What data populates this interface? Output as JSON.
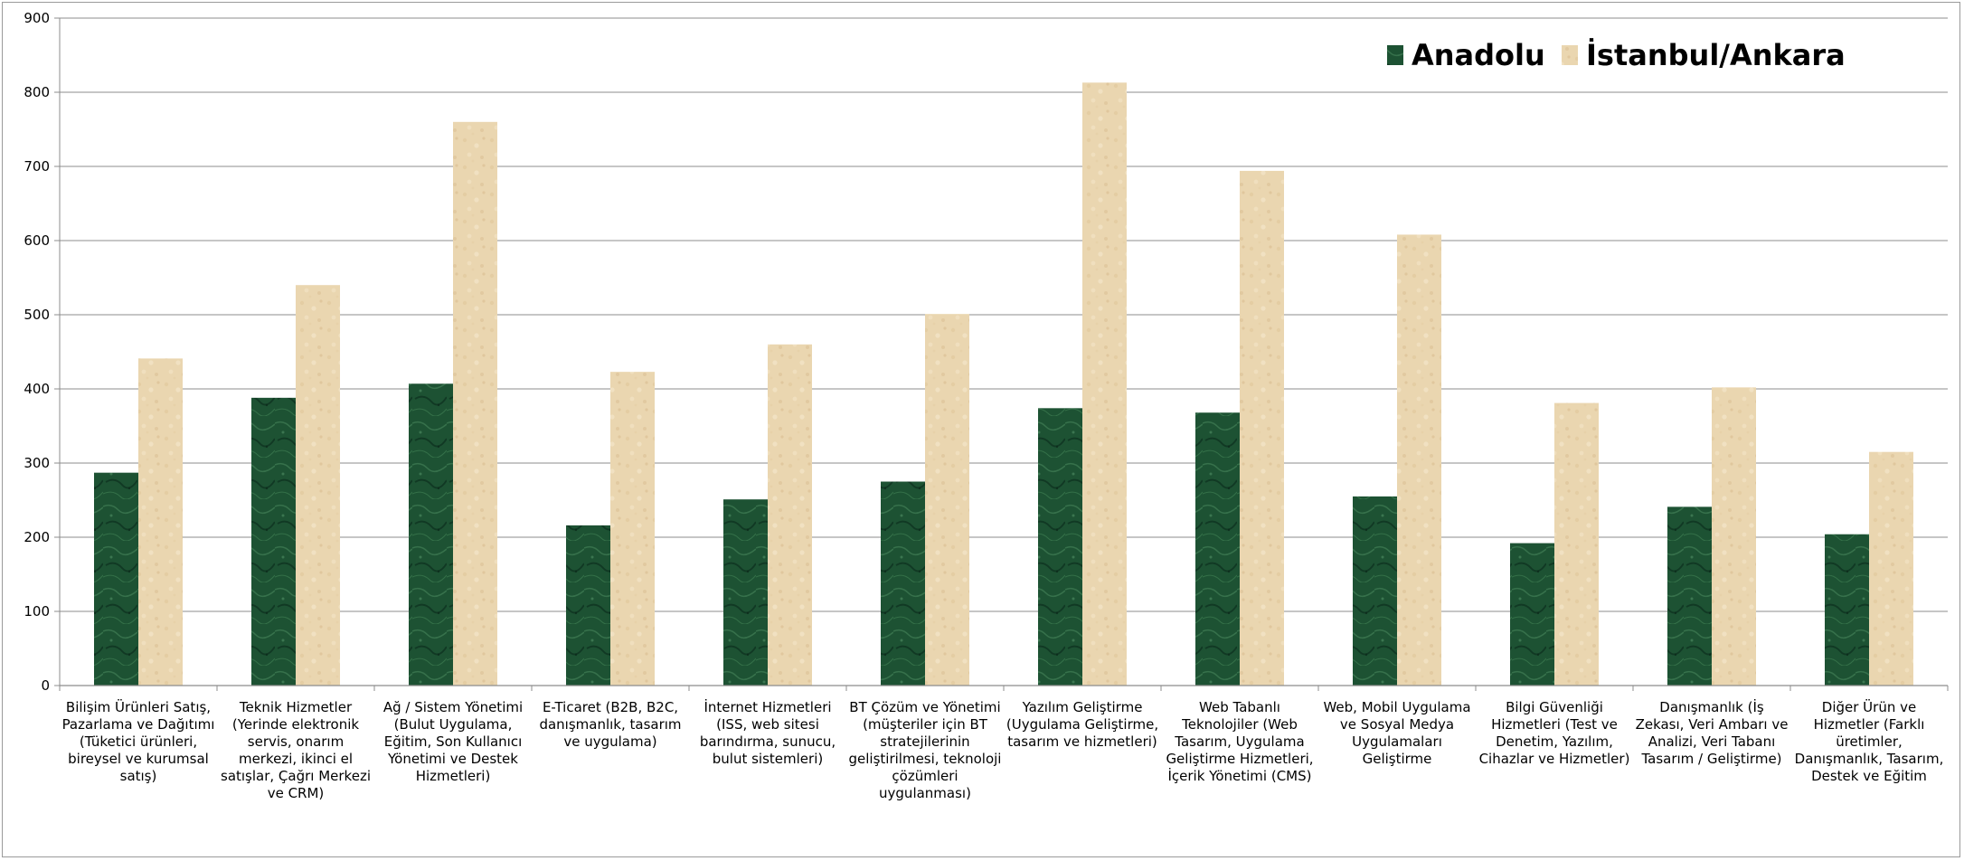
{
  "chart_data": {
    "type": "bar",
    "title": "",
    "xlabel": "",
    "ylabel": "",
    "ylim": [
      0,
      900
    ],
    "yticks": [
      "0",
      "100",
      "200",
      "300",
      "400",
      "500",
      "600",
      "700",
      "800",
      "900"
    ],
    "grid": true,
    "legend_position": "top-right",
    "categories": [
      [
        "Bilişim Ürünleri Satış,",
        "Pazarlama ve Dağıtımı",
        "(Tüketici ürünleri,",
        "bireysel ve kurumsal",
        "satış)"
      ],
      [
        "Teknik Hizmetler",
        "(Yerinde elektronik",
        "servis, onarım",
        "merkezi, ikinci el",
        "satışlar, Çağrı Merkezi",
        "ve CRM)"
      ],
      [
        "Ağ / Sistem Yönetimi",
        "(Bulut Uygulama,",
        "Eğitim, Son Kullanıcı",
        "Yönetimi ve Destek",
        "Hizmetleri)"
      ],
      [
        "E-Ticaret (B2B, B2C,",
        "danışmanlık, tasarım",
        "ve uygulama)"
      ],
      [
        "İnternet Hizmetleri",
        "(ISS, web sitesi",
        "barındırma, sunucu,",
        "bulut sistemleri)"
      ],
      [
        "BT Çözüm ve Yönetimi",
        "(müşteriler için BT",
        "stratejilerinin",
        "geliştirilmesi, teknoloji",
        "çözümleri",
        "uygulanması)"
      ],
      [
        "Yazılım Geliştirme",
        "(Uygulama Geliştirme,",
        "tasarım ve hizmetleri)"
      ],
      [
        "Web Tabanlı",
        "Teknolojiler (Web",
        "Tasarım, Uygulama",
        "Geliştirme Hizmetleri,",
        "İçerik Yönetimi (CMS)"
      ],
      [
        "Web, Mobil Uygulama",
        "ve Sosyal Medya",
        "Uygulamaları",
        "Geliştirme"
      ],
      [
        "Bilgi Güvenliği",
        "Hizmetleri (Test ve",
        "Denetim, Yazılım,",
        "Cihazlar ve Hizmetler)"
      ],
      [
        "Danışmanlık (İş",
        "Zekası, Veri Ambarı ve",
        "Analizi, Veri Tabanı",
        "Tasarım / Geliştirme)"
      ],
      [
        "Diğer Ürün ve",
        "Hizmetler (Farklı",
        "üretimler,",
        "Danışmanlık, Tasarım,",
        "Destek ve Eğitim"
      ]
    ],
    "series": [
      {
        "name": "Anadolu",
        "color": "#1d5233",
        "values": [
          287,
          388,
          407,
          216,
          251,
          275,
          374,
          368,
          255,
          192,
          241,
          204
        ]
      },
      {
        "name": "İstanbul/Ankara",
        "color": "#ead6b0",
        "values": [
          441,
          540,
          760,
          423,
          460,
          501,
          813,
          694,
          608,
          381,
          402,
          315
        ]
      }
    ]
  }
}
